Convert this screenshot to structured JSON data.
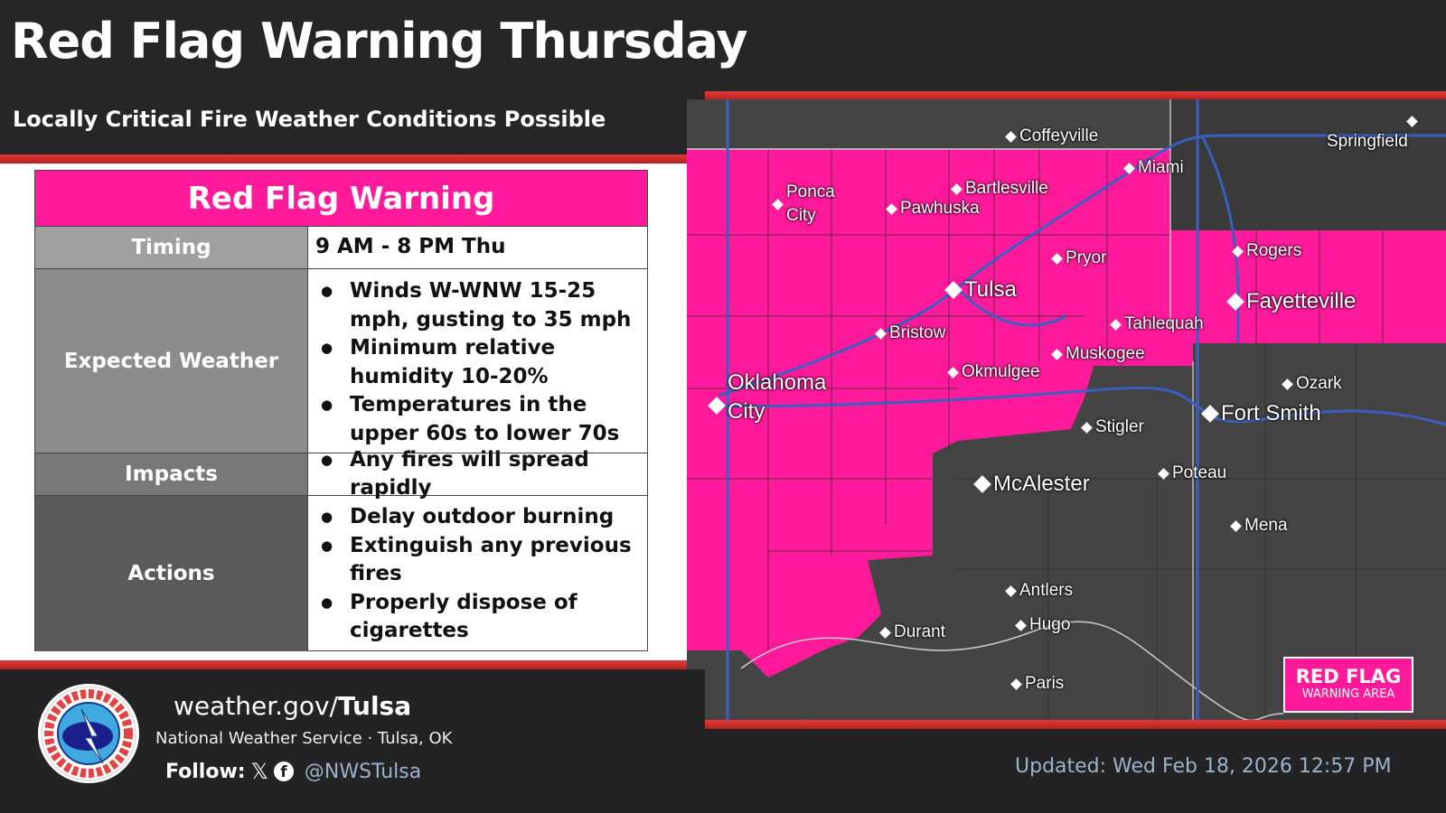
{
  "header": {
    "title": "Red Flag Warning Thursday",
    "subtitle": "Locally Critical Fire Weather Conditions Possible"
  },
  "table": {
    "heading": "Red Flag Warning",
    "rows": [
      {
        "label": "Timing",
        "value": "9 AM - 8 PM Thu"
      },
      {
        "label": "Expected Weather",
        "items": [
          "Winds W-WNW 15-25 mph, gusting to 35 mph",
          "Minimum relative humidity 10-20%",
          "Temperatures in the upper 60s to lower 70s"
        ]
      },
      {
        "label": "Impacts",
        "items": [
          "Any fires will spread rapidly"
        ]
      },
      {
        "label": "Actions",
        "items": [
          "Delay outdoor burning",
          "Extinguish any previous fires",
          "Properly dispose of cigarettes"
        ]
      }
    ]
  },
  "map": {
    "cities": [
      "Coffeyville",
      "Springfield",
      "Miami",
      "Ponca City",
      "Pawhuska",
      "Bartlesville",
      "Rogers",
      "Pryor",
      "Tulsa",
      "Fayetteville",
      "Tahlequah",
      "Bristow",
      "Muskogee",
      "Okmulgee",
      "Ozark",
      "Oklahoma City",
      "Fort Smith",
      "Stigler",
      "Poteau",
      "McAlester",
      "Mena",
      "Antlers",
      "Hugo",
      "Durant",
      "Paris"
    ],
    "legend": {
      "line1": "RED FLAG",
      "line2": "WARNING AREA"
    },
    "colors": {
      "warning": "#ff1a9b",
      "land": "#444444",
      "roads": "#3b5fc0"
    }
  },
  "footer": {
    "url_prefix": "weather.gov/",
    "url_bold": "Tulsa",
    "org": "National Weather Service · Tulsa, OK",
    "follow_label": "Follow:",
    "handle": "@NWSTulsa",
    "updated": "Updated: Wed Feb 18, 2026 12:57 PM",
    "logo_text": "NATIONAL WEATHER SERVICE"
  }
}
